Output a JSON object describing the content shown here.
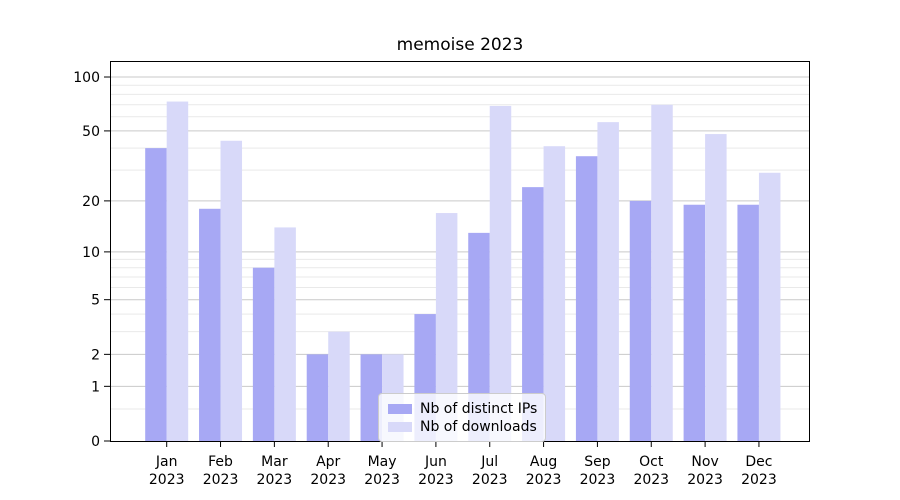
{
  "title": "memoise 2023",
  "legend": {
    "position": "lower center",
    "items": [
      {
        "label": "Nb of distinct IPs",
        "color": "#a7a8f4"
      },
      {
        "label": "Nb of downloads",
        "color": "#d8d9f9"
      }
    ]
  },
  "chart_data": {
    "type": "bar",
    "title": "memoise 2023",
    "xlabel": "",
    "ylabel": "",
    "categories": [
      "Jan 2023",
      "Feb 2023",
      "Mar 2023",
      "Apr 2023",
      "May 2023",
      "Jun 2023",
      "Jul 2023",
      "Aug 2023",
      "Sep 2023",
      "Oct 2023",
      "Nov 2023",
      "Dec 2023"
    ],
    "series": [
      {
        "name": "Nb of distinct IPs",
        "color": "#a7a8f4",
        "values": [
          40,
          18,
          8,
          2,
          2,
          4,
          13,
          24,
          36,
          20,
          19,
          19
        ]
      },
      {
        "name": "Nb of downloads",
        "color": "#d8d9f9",
        "values": [
          73,
          44,
          14,
          3,
          2,
          17,
          69,
          41,
          56,
          70,
          48,
          29
        ]
      }
    ],
    "yscale": "log1p",
    "ylim": [
      0,
      122
    ],
    "y_major_ticks": [
      0,
      1,
      2,
      5,
      10,
      20,
      50,
      100
    ],
    "y_minor_ticks": [
      0.5,
      3,
      4,
      6,
      7,
      8,
      9,
      30,
      40,
      60,
      70,
      80,
      90
    ],
    "grid": true,
    "legend_position": "lower center"
  },
  "style": {
    "major_grid_color": "#c9c9c9",
    "minor_grid_color": "#e9e9e9",
    "spine_color": "#000000",
    "tick_label_color": "#000000",
    "background": "#ffffff"
  }
}
